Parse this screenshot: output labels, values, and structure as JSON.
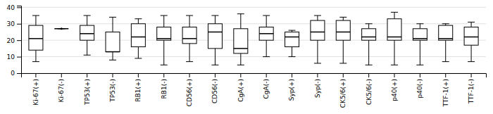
{
  "chart_data": {
    "type": "box",
    "categories": [
      "Ki-67(+)",
      "Ki-67(-)",
      "TP53(+)",
      "TP53(-)",
      "RB1(+)",
      "RB1(-)",
      "CD56(+)",
      "CD56(-)",
      "CgA(+)",
      "CgA(-)",
      "Syp(+)",
      "Syp(-)",
      "CK5/6(+)",
      "CK5/6(-)",
      "p40(+)",
      "p40(-)",
      "TTF-1(+)",
      "TTF-1(-)"
    ],
    "boxes": [
      {
        "whislo": 7,
        "q1": 14,
        "med": 21,
        "q3": 29,
        "whishi": 35,
        "fliers": []
      },
      {
        "whislo": 27,
        "q1": 27,
        "med": 27,
        "q3": 27,
        "whishi": 27,
        "fliers": [
          27
        ]
      },
      {
        "whislo": 11,
        "q1": 20,
        "med": 24,
        "q3": 29,
        "whishi": 35,
        "fliers": []
      },
      {
        "whislo": 8,
        "q1": 13,
        "med": 13,
        "q3": 25,
        "whishi": 34,
        "fliers": []
      },
      {
        "whislo": 9,
        "q1": 16,
        "med": 22,
        "q3": 30,
        "whishi": 33,
        "fliers": []
      },
      {
        "whislo": 5,
        "q1": 20,
        "med": 21,
        "q3": 28,
        "whishi": 35,
        "fliers": []
      },
      {
        "whislo": 7,
        "q1": 18,
        "med": 21,
        "q3": 28,
        "whishi": 35,
        "fliers": []
      },
      {
        "whislo": 5,
        "q1": 15,
        "med": 25,
        "q3": 30,
        "whishi": 35,
        "fliers": []
      },
      {
        "whislo": 5,
        "q1": 12,
        "med": 15,
        "q3": 27,
        "whishi": 36,
        "fliers": []
      },
      {
        "whislo": 10,
        "q1": 20,
        "med": 24,
        "q3": 28,
        "whishi": 35,
        "fliers": []
      },
      {
        "whislo": 10,
        "q1": 16,
        "med": 22,
        "q3": 25,
        "whishi": 26,
        "fliers": []
      },
      {
        "whislo": 6,
        "q1": 20,
        "med": 25,
        "q3": 32,
        "whishi": 35,
        "fliers": []
      },
      {
        "whislo": 6,
        "q1": 20,
        "med": 25,
        "q3": 32,
        "whishi": 34,
        "fliers": []
      },
      {
        "whislo": 5,
        "q1": 20,
        "med": 22,
        "q3": 27,
        "whishi": 30,
        "fliers": []
      },
      {
        "whislo": 5,
        "q1": 20,
        "med": 22,
        "q3": 33,
        "whishi": 37,
        "fliers": []
      },
      {
        "whislo": 5,
        "q1": 20,
        "med": 21,
        "q3": 27,
        "whishi": 30,
        "fliers": []
      },
      {
        "whislo": 7,
        "q1": 20,
        "med": 21,
        "q3": 29,
        "whishi": 30,
        "fliers": []
      },
      {
        "whislo": 7,
        "q1": 17,
        "med": 22,
        "q3": 28,
        "whishi": 31,
        "fliers": []
      }
    ],
    "color": "black",
    "ylim": [
      0,
      41
    ],
    "yticks": [
      0,
      10,
      20,
      30,
      40
    ],
    "grid": true
  }
}
